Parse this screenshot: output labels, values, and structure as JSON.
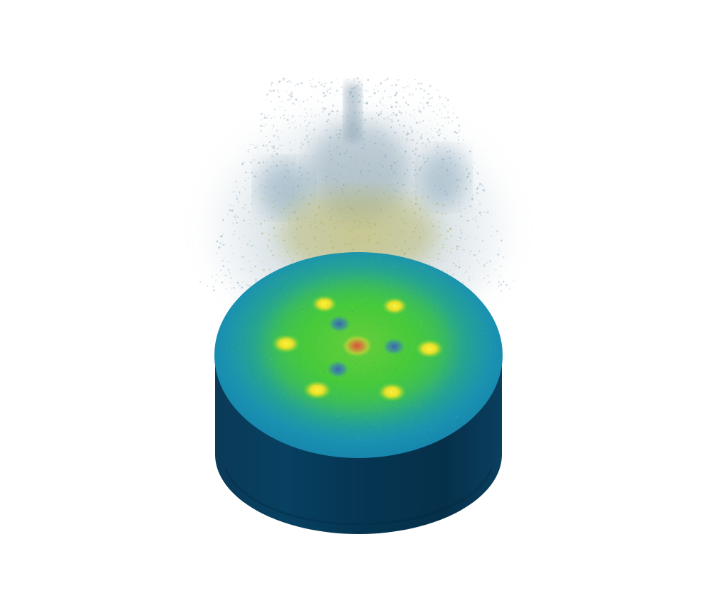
{
  "scene": {
    "background": "#ffffff",
    "cylinder": {
      "side_color_dark": "#06304a",
      "side_color_mid": "#0b4466",
      "top_color_edge": "#1a8fb0",
      "top_color_mid": "#2bb59a",
      "glow_color": "#3bd64a",
      "hot_color": "#f2e62a",
      "cold_color": "#3d6fb8",
      "center_color": "#d9633a"
    },
    "hot_spot_count": 6,
    "cold_spot_count": 3,
    "particle_cloud": {
      "color_top": "#8fb0c4",
      "color_bottom": "#c7c86a"
    }
  }
}
